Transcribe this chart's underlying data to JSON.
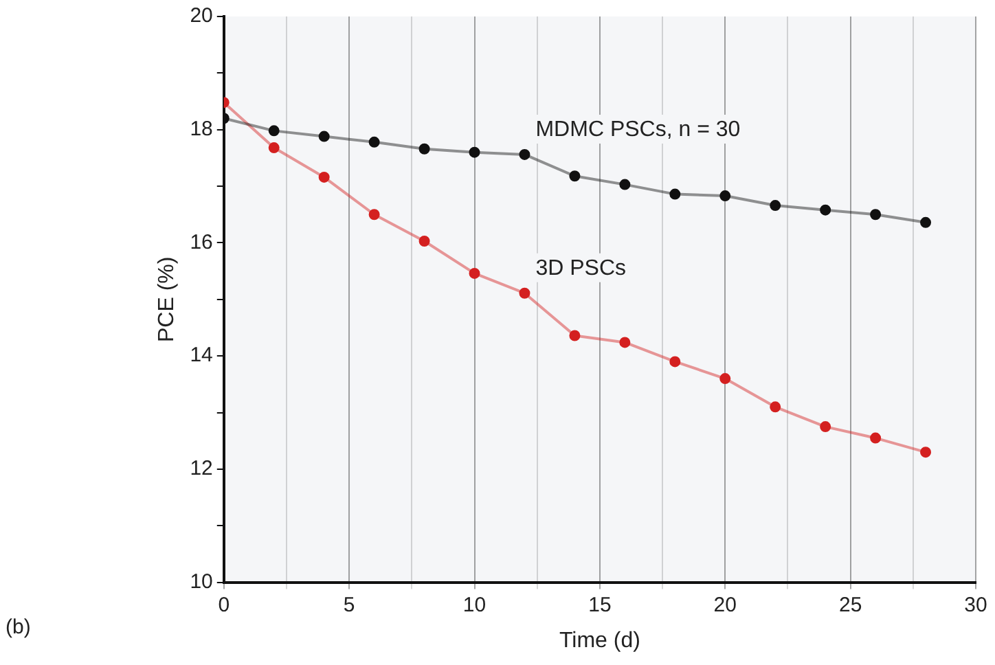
{
  "chart_data": {
    "type": "line",
    "xlabel": "Time (d)",
    "ylabel": "PCE (%)",
    "xlim": [
      0,
      30
    ],
    "xticks": [
      0,
      {
        "value": 2.5,
        "label": null
      },
      5,
      {
        "value": 7.5,
        "label": null
      },
      10,
      {
        "value": 12.5,
        "label": null
      },
      15,
      {
        "value": 17.5,
        "label": null
      },
      20,
      {
        "value": 22.5,
        "label": null
      },
      25,
      {
        "value": 27.5,
        "label": null
      },
      30
    ],
    "ylim": [
      10,
      20
    ],
    "yticks": [
      10,
      {
        "value": 11,
        "label": null
      },
      12,
      {
        "value": 13,
        "label": null
      },
      14,
      {
        "value": 15,
        "label": null
      },
      16,
      {
        "value": 17,
        "label": null
      },
      18,
      {
        "value": 19,
        "label": null
      },
      20
    ],
    "x": [
      0,
      2,
      4,
      6,
      8,
      10,
      12,
      14,
      16,
      18,
      20,
      22,
      24,
      26,
      28
    ],
    "series": [
      {
        "name": "MDMC PSCs, n = 30",
        "color": "#111111",
        "values": [
          18.2,
          17.98,
          17.88,
          17.78,
          17.66,
          17.6,
          17.56,
          17.18,
          17.03,
          16.86,
          16.83,
          16.66,
          16.58,
          16.5,
          16.36
        ]
      },
      {
        "name": "3D PSCs",
        "color": "#d42020",
        "values": [
          18.48,
          17.68,
          17.16,
          16.5,
          16.03,
          15.46,
          15.11,
          14.36,
          14.24,
          13.9,
          13.6,
          13.1,
          12.75,
          12.55,
          12.3
        ]
      }
    ],
    "annotations": [
      "(b)"
    ],
    "grid": "x",
    "marker": "circle",
    "line_style": "solid",
    "legend": false
  }
}
